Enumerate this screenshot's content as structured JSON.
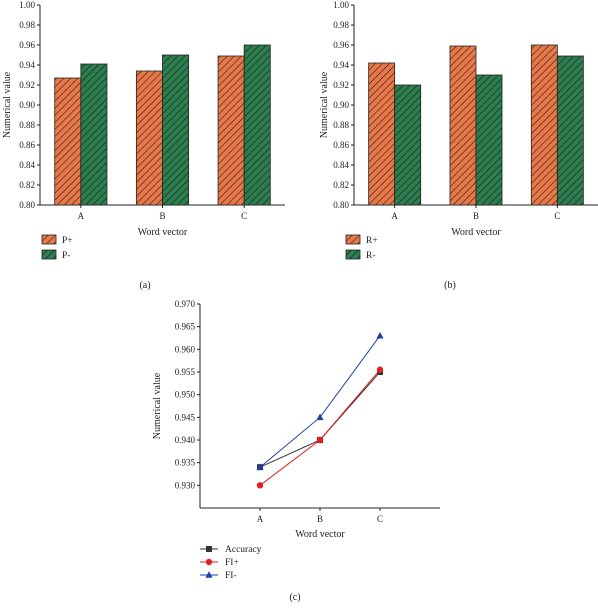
{
  "chart_data": [
    {
      "type": "bar",
      "panel_label": "(a)",
      "xlabel": "Word vector",
      "ylabel": "Numerical value",
      "categories": [
        "A",
        "B",
        "C"
      ],
      "ylim": [
        0.8,
        1.0
      ],
      "yticks": [
        "0.80",
        "0.82",
        "0.84",
        "0.86",
        "0.88",
        "0.90",
        "0.92",
        "0.94",
        "0.96",
        "0.98",
        "1.00"
      ],
      "series": [
        {
          "name": "P+",
          "values": [
            0.927,
            0.934,
            0.949
          ],
          "color": "#e8784a"
        },
        {
          "name": "P-",
          "values": [
            0.941,
            0.95,
            0.96
          ],
          "color": "#2e7d4f"
        }
      ],
      "legend": "below"
    },
    {
      "type": "bar",
      "panel_label": "(b)",
      "xlabel": "Word vector",
      "ylabel": "Numerical value",
      "categories": [
        "A",
        "B",
        "C"
      ],
      "ylim": [
        0.8,
        1.0
      ],
      "yticks": [
        "0.80",
        "0.82",
        "0.84",
        "0.86",
        "0.88",
        "0.90",
        "0.92",
        "0.94",
        "0.96",
        "0.98",
        "1.00"
      ],
      "series": [
        {
          "name": "R+",
          "values": [
            0.942,
            0.959,
            0.96
          ],
          "color": "#e8784a"
        },
        {
          "name": "R-",
          "values": [
            0.92,
            0.93,
            0.949
          ],
          "color": "#2e7d4f"
        }
      ],
      "legend": "below"
    },
    {
      "type": "line",
      "panel_label": "(c)",
      "xlabel": "Word vector",
      "ylabel": "Numerical value",
      "categories": [
        "A",
        "B",
        "C"
      ],
      "ylim": [
        0.925,
        0.97
      ],
      "yticks": [
        "0.930",
        "0.935",
        "0.940",
        "0.945",
        "0.950",
        "0.955",
        "0.960",
        "0.965",
        "0.970"
      ],
      "series": [
        {
          "name": "Accuracy",
          "values": [
            0.934,
            0.94,
            0.955
          ],
          "color": "#333333",
          "marker": "square"
        },
        {
          "name": "FI+",
          "values": [
            0.93,
            0.94,
            0.9555
          ],
          "color": "#e02020",
          "marker": "circle"
        },
        {
          "name": "FI-",
          "values": [
            0.934,
            0.945,
            0.963
          ],
          "color": "#1f3fa8",
          "marker": "triangle"
        }
      ],
      "legend": "below-left"
    }
  ]
}
